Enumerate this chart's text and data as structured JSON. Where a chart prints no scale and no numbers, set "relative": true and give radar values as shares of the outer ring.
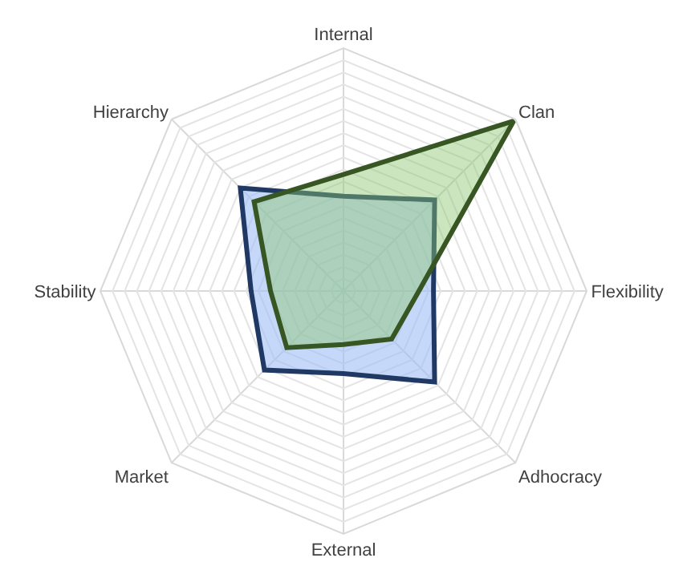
{
  "chart_data": {
    "type": "radar",
    "relative": true,
    "categories": [
      "Internal",
      "Clan",
      "Flexibility",
      "Adhocracy",
      "External",
      "Market",
      "Stability",
      "Hierarchy"
    ],
    "series": [
      {
        "color": "#1f3864",
        "values": [
          0.39,
          0.53,
          0.37,
          0.53,
          0.34,
          0.46,
          0.38,
          0.6
        ]
      },
      {
        "color": "#375623",
        "values": [
          0.48,
          0.99,
          0.31,
          0.28,
          0.22,
          0.33,
          0.3,
          0.52
        ]
      }
    ],
    "grid": true,
    "marker": "none"
  }
}
